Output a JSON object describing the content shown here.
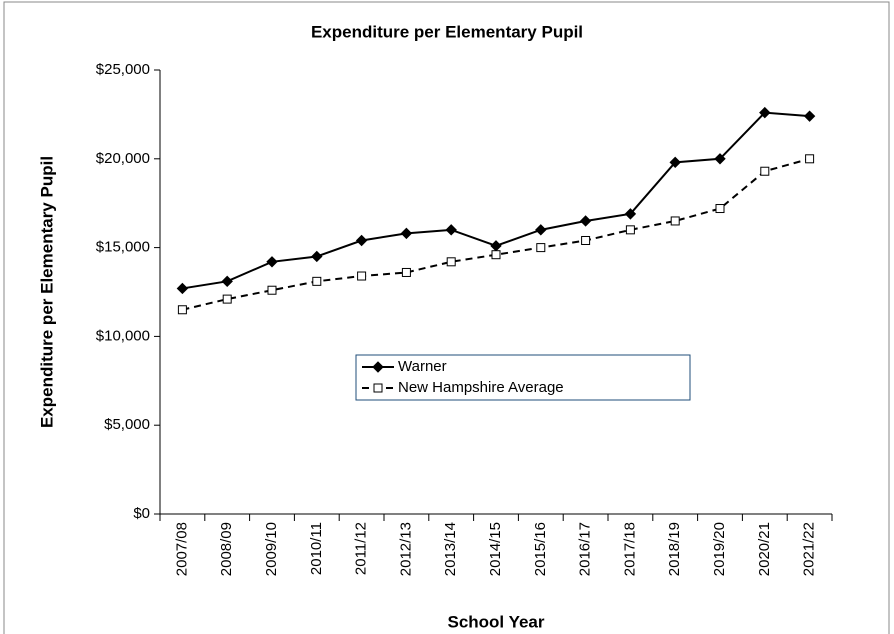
{
  "chart_data": {
    "type": "line",
    "title": "Expenditure per Elementary Pupil",
    "x_label": "School Year",
    "y_label": "Expenditure per Elementary Pupil",
    "categories": [
      "2007/08",
      "2008/09",
      "2009/10",
      "2010/11",
      "2011/12",
      "2012/13",
      "2013/14",
      "2014/15",
      "2015/16",
      "2016/17",
      "2017/18",
      "2018/19",
      "2019/20",
      "2020/21",
      "2021/22"
    ],
    "series": [
      {
        "name": "Warner",
        "color": "#000000",
        "marker": "diamond",
        "line_style": "solid",
        "values": [
          12700,
          13100,
          14200,
          14500,
          15400,
          15800,
          16000,
          15100,
          16000,
          16500,
          16900,
          19800,
          20000,
          22600,
          22400
        ]
      },
      {
        "name": "New Hampshire Average",
        "color": "#000000",
        "marker": "square",
        "line_style": "dashed",
        "values": [
          11500,
          12100,
          12600,
          13100,
          13400,
          13600,
          14200,
          14600,
          15000,
          15400,
          16000,
          16500,
          17200,
          19300,
          20000
        ]
      }
    ],
    "ylim": [
      0,
      25000
    ],
    "yticks": [
      {
        "value": 0,
        "label": "$0"
      },
      {
        "value": 5000,
        "label": "$5,000"
      },
      {
        "value": 10000,
        "label": "$10,000"
      },
      {
        "value": 15000,
        "label": "$15,000"
      },
      {
        "value": 20000,
        "label": "$20,000"
      },
      {
        "value": 25000,
        "label": "$25,000"
      }
    ],
    "grid": false,
    "legend": "center"
  }
}
